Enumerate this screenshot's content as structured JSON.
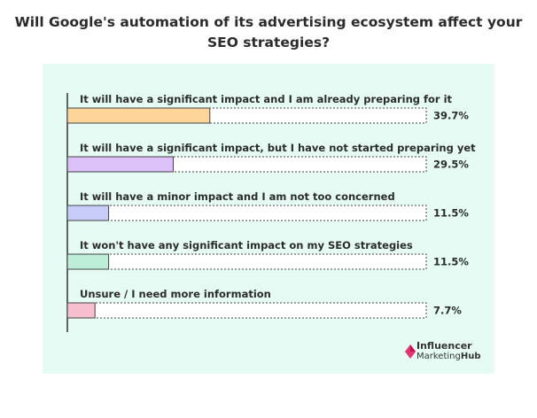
{
  "title_lines": [
    "Will Google's automation of its advertising ecosystem affect your",
    "SEO strategies?"
  ],
  "brand": {
    "line1": "Influencer",
    "line2_part1": "Marketing",
    "line2_part2": "Hub",
    "color": "#e8336f"
  },
  "chart_data": {
    "type": "bar",
    "orientation": "horizontal",
    "categories": [
      "It will have a significant impact and I am already preparing for it",
      "It will have a significant impact, but I have not started preparing yet",
      "It will have a minor impact and I am not too concerned",
      "It won't have any significant impact on my SEO strategies",
      "Unsure / I need more information"
    ],
    "values": [
      39.7,
      29.5,
      11.5,
      11.5,
      7.7
    ],
    "value_labels": [
      "39.7%",
      "29.5%",
      "11.5%",
      "11.5%",
      "7.7%"
    ],
    "xlim": [
      0,
      100
    ],
    "colors": [
      "#fdd59b",
      "#dcc2f8",
      "#c7ccf8",
      "#bdeed8",
      "#f8bfd0"
    ],
    "grid": false,
    "legend": "none",
    "background": "#e5fbf4"
  }
}
